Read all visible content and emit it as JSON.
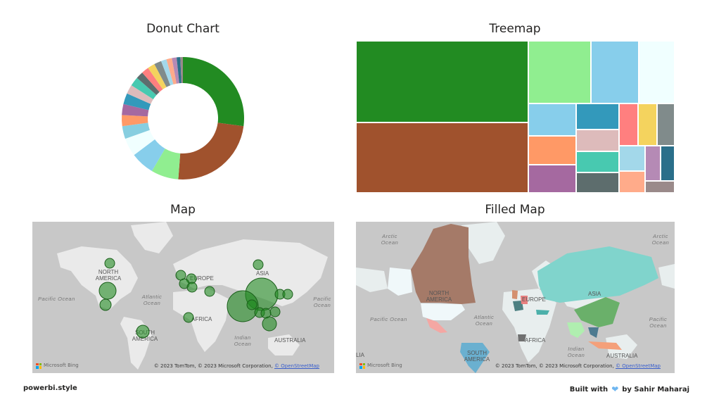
{
  "titles": {
    "donut": "Donut Chart",
    "treemap": "Treemap",
    "map": "Map",
    "filled_map": "Filled Map"
  },
  "map_labels": {
    "north_america": "NORTH AMERICA",
    "south_america": "SOUTH AMERICA",
    "europe": "EUROPE",
    "asia": "ASIA",
    "africa": "AFRICA",
    "australia": "AUSTRALIA",
    "pacific": "Pacific Ocean",
    "atlantic": "Atlantic Ocean",
    "indian": "Indian Ocean",
    "arctic": "Arctic Ocean",
    "lia": "LIA"
  },
  "attribution": {
    "bing": "Microsoft Bing",
    "copyright": "© 2023 TomTom, © 2023 Microsoft Corporation, ",
    "osm": "© OpenStreetMap"
  },
  "footer": {
    "left": "powerbi.style",
    "right_prefix": "Built with",
    "right_suffix": "by Sahir Maharaj",
    "heart_icon": "blue-heart-icon"
  },
  "chart_data": [
    {
      "type": "pie",
      "title": "Donut Chart",
      "values": [
        28,
        25,
        7.5,
        6.5,
        5,
        3.5,
        3,
        3,
        3,
        2.5,
        2.5,
        2,
        2,
        2,
        2,
        1.5,
        1.5,
        1.3,
        1,
        0.7
      ],
      "colors": [
        "#228b22",
        "#a0522d",
        "#90ee90",
        "#87ceeb",
        "#f0ffff",
        "#87cee0",
        "#ff9966",
        "#a569a0",
        "#3399bb",
        "#ddbbbb",
        "#48c9b0",
        "#5d6d6d",
        "#ff7f7f",
        "#f4d35e",
        "#808b8b",
        "#a3d8ea",
        "#ffab8a",
        "#b58ab5",
        "#2a6f8a",
        "#9a8a8a"
      ]
    },
    {
      "type": "treemap",
      "title": "Treemap",
      "values": [
        28,
        25,
        7.5,
        6.5,
        5,
        3.5,
        3,
        3,
        3,
        2.5,
        2.5,
        2,
        2,
        2,
        2,
        1.5,
        1.5,
        1.3,
        1,
        0.7
      ]
    }
  ]
}
